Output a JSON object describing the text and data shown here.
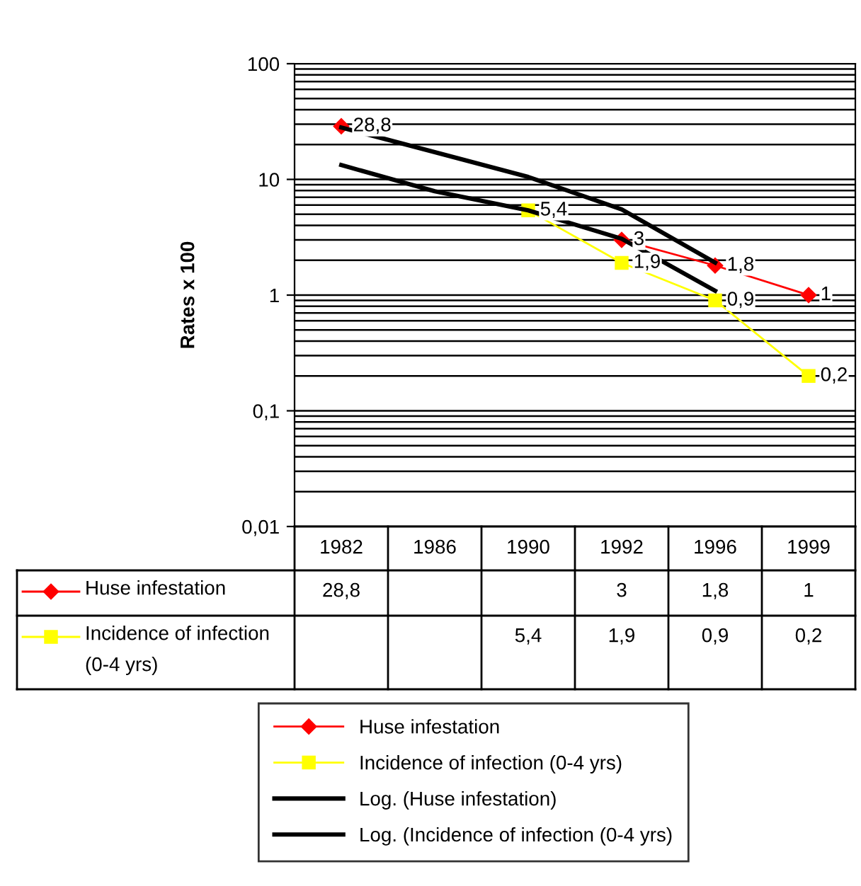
{
  "chart_data": {
    "type": "line",
    "ylabel": "Rates x 100",
    "categories": [
      "1982",
      "1986",
      "1990",
      "1992",
      "1996",
      "1999"
    ],
    "series": [
      {
        "name": "Huse infestation",
        "color": "#ff0000",
        "marker": "diamond",
        "values": [
          28.8,
          null,
          null,
          3,
          1.8,
          1
        ],
        "value_labels": [
          "28,8",
          null,
          null,
          "3",
          "1,8",
          "1"
        ]
      },
      {
        "name": "Incidence of infection (0-4 yrs)",
        "color": "#ffff00",
        "marker": "square",
        "values": [
          null,
          null,
          5.4,
          1.9,
          0.9,
          0.2
        ],
        "value_labels": [
          null,
          null,
          "5,4",
          "1,9",
          "0,9",
          "0,2"
        ]
      },
      {
        "name": "Log. (Huse infestation)",
        "color": "#000000",
        "marker": "none",
        "values": [
          28.1,
          17.2,
          10.5,
          5.5,
          1.91,
          null
        ]
      },
      {
        "name": "Log. (Incidence of infection (0-4 yrs)",
        "color": "#000000",
        "marker": "none",
        "values": [
          13.3,
          7.9,
          5.4,
          3.07,
          1.09,
          null
        ]
      }
    ],
    "log": "y",
    "ylim": [
      0.01,
      100
    ],
    "yticks": [
      {
        "value": 0.01,
        "label": "0,01"
      },
      {
        "value": 0.1,
        "label": "0,1"
      },
      1,
      10,
      100
    ],
    "grid": "y",
    "legend": "bottom",
    "data_labels": false
  }
}
